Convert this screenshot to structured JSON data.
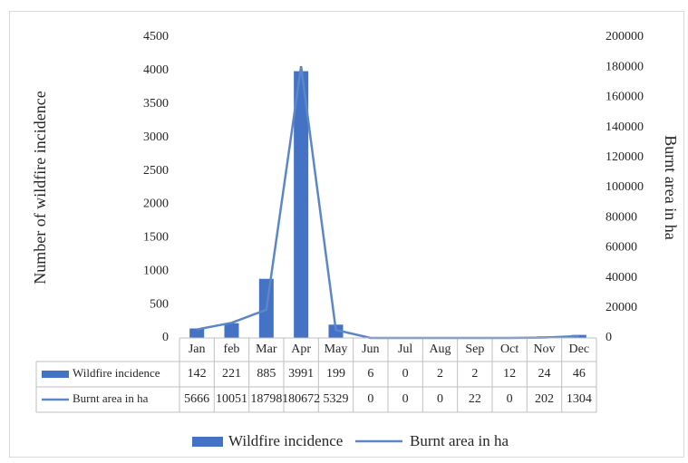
{
  "chart_data": {
    "type": "bar",
    "categories": [
      "Jan",
      "feb",
      "Mar",
      "Apr",
      "May",
      "Jun",
      "Jul",
      "Aug",
      "Sep",
      "Oct",
      "Nov",
      "Dec"
    ],
    "series": [
      {
        "name": "Wildfire incidence",
        "type": "bar",
        "color": "#4472c4",
        "values": [
          142,
          221,
          885,
          3991,
          199,
          6,
          0,
          2,
          2,
          12,
          24,
          46
        ]
      },
      {
        "name": "Burnt area in ha",
        "type": "line",
        "axis": "y2",
        "color": "#5b87c8",
        "values": [
          5666,
          10051,
          18798,
          180672,
          5329,
          0,
          0,
          0,
          22,
          0,
          202,
          1304
        ]
      }
    ],
    "y_label": "Number of wildfire incidence",
    "y2_label": "Burnt area in ha",
    "ylim": [
      0,
      4500
    ],
    "yticks": [
      0,
      500,
      1000,
      1500,
      2000,
      2500,
      3000,
      3500,
      4000,
      4500
    ],
    "y2lim": [
      0,
      200000
    ],
    "y2ticks": [
      0,
      20000,
      40000,
      60000,
      80000,
      100000,
      120000,
      140000,
      160000,
      180000,
      200000
    ],
    "grid": false,
    "legend": "bottom",
    "data_table": true
  }
}
